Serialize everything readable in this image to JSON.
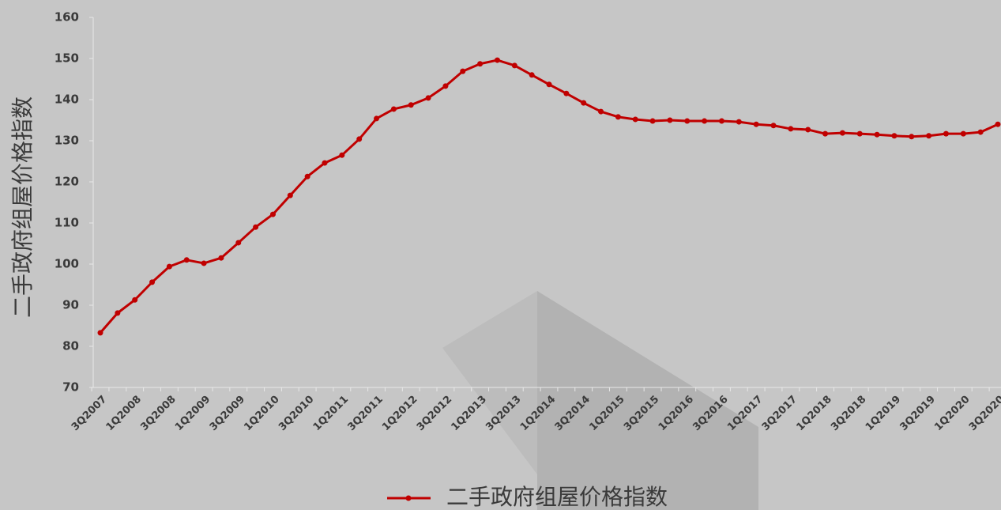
{
  "chart_data": {
    "type": "line",
    "y_axis_label": "二手政府组屋价格指数",
    "categories": [
      "3Q2007",
      null,
      "1Q2008",
      null,
      "3Q2008",
      null,
      "1Q2009",
      null,
      "3Q2009",
      null,
      "1Q2010",
      null,
      "3Q2010",
      null,
      "1Q2011",
      null,
      "3Q2011",
      null,
      "1Q2012",
      null,
      "3Q2012",
      null,
      "1Q2013",
      null,
      "3Q2013",
      null,
      "1Q2014",
      null,
      "3Q2014",
      null,
      "1Q2015",
      null,
      "3Q2015",
      null,
      "1Q2016",
      null,
      "3Q2016",
      null,
      "1Q2017",
      null,
      "3Q2017",
      null,
      "1Q2018",
      null,
      "3Q2018",
      null,
      "1Q2019",
      null,
      "3Q2019",
      null,
      "1Q2020",
      null,
      "3Q2020"
    ],
    "series": [
      {
        "name": "二手政府组屋价格指数",
        "color": "#c00000",
        "values": [
          83.3,
          88.1,
          91.3,
          95.6,
          99.4,
          101.0,
          100.2,
          101.5,
          105.2,
          109.0,
          112.1,
          116.7,
          121.3,
          124.6,
          126.5,
          130.4,
          135.4,
          137.7,
          138.7,
          140.4,
          143.3,
          146.9,
          148.7,
          149.6,
          148.3,
          146.0,
          143.7,
          141.5,
          139.2,
          137.1,
          135.8,
          135.2,
          134.8,
          135.0,
          134.8,
          134.8,
          134.8,
          134.6,
          134.0,
          133.7,
          132.9,
          132.7,
          131.7,
          131.9,
          131.7,
          131.5,
          131.2,
          131.0,
          131.2,
          131.7,
          131.7,
          132.1,
          134.0
        ]
      }
    ],
    "ylim": [
      70,
      160
    ],
    "yticks": [
      70,
      80,
      90,
      100,
      110,
      120,
      130,
      140,
      150,
      160
    ],
    "legend": "bottom"
  }
}
